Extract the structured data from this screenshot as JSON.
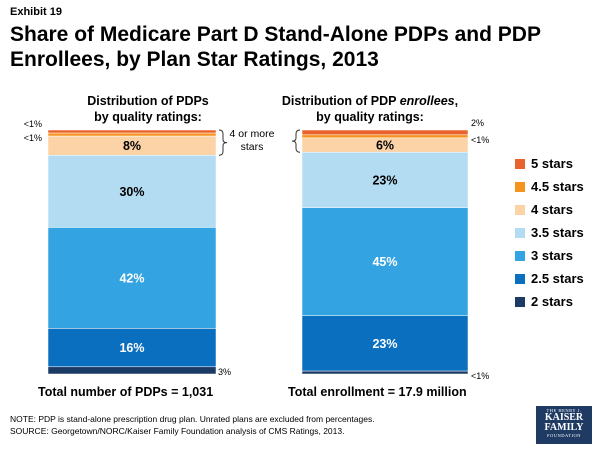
{
  "exhibit": "Exhibit 19",
  "title": "Share of Medicare Part D Stand-Alone PDPs and PDP Enrollees, by Plan Star Ratings, 2013",
  "chart_data": [
    {
      "type": "bar",
      "stacked": true,
      "title_line1": "Distribution of PDPs",
      "title_line2": "by quality ratings:",
      "total_label": "Total number of PDPs = 1,031",
      "series": [
        {
          "name": "2 stars",
          "value": 3,
          "label": "3%"
        },
        {
          "name": "2.5 stars",
          "value": 16,
          "label": "16%"
        },
        {
          "name": "3 stars",
          "value": 42,
          "label": "42%"
        },
        {
          "name": "3.5 stars",
          "value": 30,
          "label": "30%"
        },
        {
          "name": "4 stars",
          "value": 8,
          "label": "8%"
        },
        {
          "name": "4.5 stars",
          "value": 0.5,
          "label": "<1%"
        },
        {
          "name": "5 stars",
          "value": 0.5,
          "label": "<1%"
        }
      ],
      "annotation": "4 or more stars"
    },
    {
      "type": "bar",
      "stacked": true,
      "title_line1_prefix": "Distribution of PDP ",
      "title_line1_em": "enrollees",
      "title_line1_suffix": ",",
      "title_line2": "by quality ratings:",
      "total_label": "Total enrollment = 17.9 million",
      "series": [
        {
          "name": "2 stars",
          "value": 0.5,
          "label": "<1%"
        },
        {
          "name": "2.5 stars",
          "value": 23,
          "label": "23%"
        },
        {
          "name": "3 stars",
          "value": 45,
          "label": "45%"
        },
        {
          "name": "3.5 stars",
          "value": 23,
          "label": "23%"
        },
        {
          "name": "4 stars",
          "value": 6,
          "label": "6%"
        },
        {
          "name": "4.5 stars",
          "value": 0.5,
          "label": "<1%"
        },
        {
          "name": "5 stars",
          "value": 2,
          "label": "2%"
        }
      ]
    }
  ],
  "legend": [
    {
      "label": "5 stars",
      "color": "#e8642c"
    },
    {
      "label": "4.5 stars",
      "color": "#f5931e"
    },
    {
      "label": "4 stars",
      "color": "#fcd3a6"
    },
    {
      "label": "3.5 stars",
      "color": "#b3dcf2"
    },
    {
      "label": "3 stars",
      "color": "#33a4e1"
    },
    {
      "label": "2.5 stars",
      "color": "#0b6fc0"
    },
    {
      "label": "2 stars",
      "color": "#1b3b64"
    }
  ],
  "note_line1": "NOTE: PDP is stand-alone prescription drug plan. Unrated plans are excluded from percentages.",
  "note_line2": "SOURCE: Georgetown/NORC/Kaiser Family Foundation analysis of CMS Ratings, 2013.",
  "logo": {
    "line1": "THE HENRY J.",
    "line2": "KAISER",
    "line3": "FAMILY",
    "line4": "FOUNDATION"
  }
}
